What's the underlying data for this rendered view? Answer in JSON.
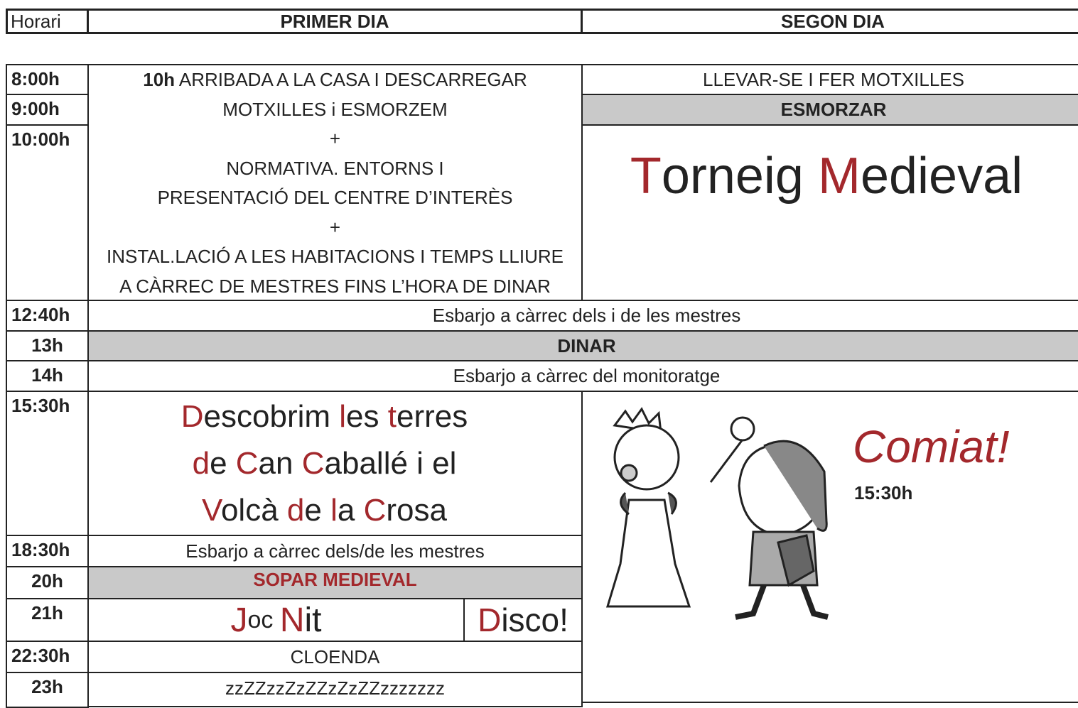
{
  "header": {
    "time": "Horari",
    "day1": "PRIMER DIA",
    "day2": "SEGON DIA"
  },
  "times": [
    "8:00h",
    "9:00h",
    "10:00h",
    "12:40h",
    "13h",
    "14h",
    "15:30h",
    "18:30h",
    "20h",
    "21h",
    "22:30h",
    "23h"
  ],
  "day1": {
    "morning_time": "10h",
    "morning": [
      "ARRIBADA A LA CASA I DESCARREGAR",
      "MOTXILLES i ESMORZEM",
      "+",
      "NORMATIVA. ENTORNS I",
      "PRESENTACIÓ DEL CENTRE D’INTERÈS",
      "+",
      "INSTAL.LACIÓ A LES HABITACIONS I TEMPS LLIURE",
      "A CÀRREC DE MESTRES FINS L’HORA DE DINAR"
    ],
    "afternoon": [
      [
        "D",
        "escobrim ",
        "l",
        "es ",
        "t",
        "erres"
      ],
      [
        "d",
        "e ",
        "C",
        "an ",
        "C",
        "aballé i el"
      ],
      [
        "V",
        "olcà ",
        "d",
        "e ",
        "l",
        "a ",
        "C",
        "rosa"
      ]
    ],
    "break": "Esbarjo a càrrec dels/de les mestres",
    "dinner": "SOPAR MEDIEVAL",
    "night_game": [
      "J",
      "oc ",
      "N",
      "it"
    ],
    "disco": [
      "D",
      "isco!"
    ],
    "closing": "CLOENDA",
    "sleep": "zzZZzzZzZZzZzZZzzzzzzz"
  },
  "day2": {
    "wake": "LLEVAR-SE I FER MOTXILLES",
    "breakfast": "ESMORZAR",
    "activity": [
      "T",
      "orneig ",
      "M",
      "edieval"
    ],
    "farewell": "Comiat!",
    "farewell_time": "15:30h"
  },
  "shared": {
    "break1": "Esbarjo a càrrec dels i de les mestres",
    "lunch": "DINAR",
    "break2": "Esbarjo a càrrec del monitoratge"
  }
}
